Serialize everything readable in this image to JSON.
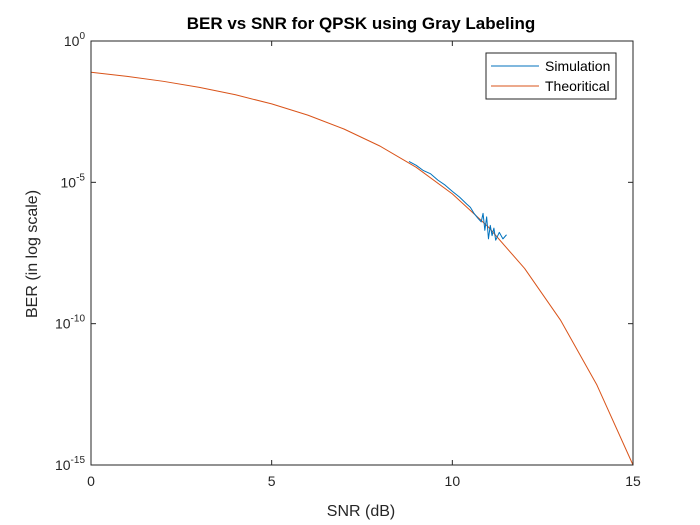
{
  "chart_data": {
    "type": "line",
    "title": "BER vs SNR for QPSK using Gray Labeling",
    "xlabel": "SNR (dB)",
    "ylabel": "BER (in log scale)",
    "xlim": [
      0,
      15
    ],
    "ylim": [
      1e-15,
      1
    ],
    "yscale": "log",
    "grid": false,
    "legend_position": "top-right",
    "x_ticks": [
      {
        "value": 0,
        "label": "0"
      },
      {
        "value": 5,
        "label": "5"
      },
      {
        "value": 10,
        "label": "10"
      },
      {
        "value": 15,
        "label": "15"
      }
    ],
    "y_ticks": [
      {
        "value": 1,
        "base": "10",
        "exp": "0"
      },
      {
        "value": 1e-05,
        "base": "10",
        "exp": "-5"
      },
      {
        "value": 1e-10,
        "base": "10",
        "exp": "-10"
      },
      {
        "value": 1e-15,
        "base": "10",
        "exp": "-15"
      }
    ],
    "series": [
      {
        "name": "Simulation",
        "color": "#0072BD",
        "x": [
          8.8,
          9.0,
          9.2,
          9.4,
          9.6,
          9.8,
          10.0,
          10.2,
          10.4,
          10.5,
          10.6,
          10.7,
          10.8,
          10.85,
          10.9,
          10.95,
          11.0,
          11.05,
          11.1,
          11.15,
          11.2,
          11.3,
          11.4,
          11.5
        ],
        "y": [
          5.5e-05,
          4e-05,
          2.6e-05,
          2e-05,
          1.2e-05,
          8e-06,
          4.8e-06,
          3e-06,
          1.7e-06,
          1.3e-06,
          8e-07,
          5.5e-07,
          4e-07,
          8e-07,
          2e-07,
          6e-07,
          1e-07,
          3e-07,
          1.3e-07,
          2.4e-07,
          9e-08,
          1.7e-07,
          1e-07,
          1.4e-07
        ]
      },
      {
        "name": "Theoritical",
        "color": "#D95319",
        "x": [
          0,
          1,
          2,
          3,
          4,
          5,
          6,
          7,
          8,
          9,
          10,
          11,
          12,
          13,
          14,
          15
        ],
        "y": [
          0.0786,
          0.0563,
          0.0375,
          0.0229,
          0.0125,
          0.00595,
          0.00239,
          0.00077,
          0.000191,
          3.4e-05,
          3.9e-06,
          2.6e-07,
          9e-09,
          1.3e-10,
          6.8e-13,
          1e-15
        ]
      }
    ]
  }
}
